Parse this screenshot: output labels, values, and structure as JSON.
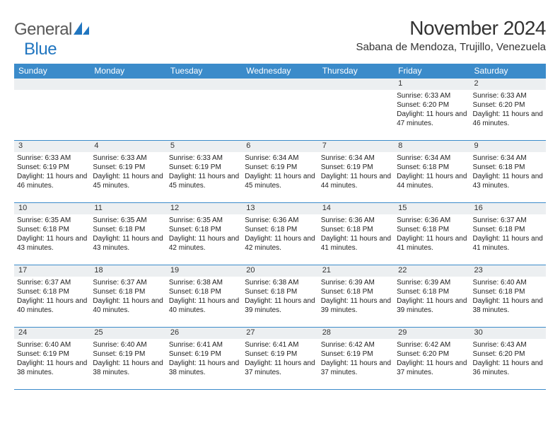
{
  "logo": {
    "text1": "General",
    "text2": "Blue"
  },
  "header": {
    "title": "November 2024",
    "location": "Sabana de Mendoza, Trujillo, Venezuela"
  },
  "colors": {
    "header_bg": "#3b8bca",
    "header_text": "#ffffff",
    "daynum_bg": "#eceff1",
    "border": "#3b8bca",
    "logo_general": "#585858",
    "logo_blue": "#2176c0",
    "text": "#333333"
  },
  "day_names": [
    "Sunday",
    "Monday",
    "Tuesday",
    "Wednesday",
    "Thursday",
    "Friday",
    "Saturday"
  ],
  "leading_blanks": 5,
  "days": [
    {
      "n": 1,
      "sr": "6:33 AM",
      "ss": "6:20 PM",
      "dl": "11 hours and 47 minutes."
    },
    {
      "n": 2,
      "sr": "6:33 AM",
      "ss": "6:20 PM",
      "dl": "11 hours and 46 minutes."
    },
    {
      "n": 3,
      "sr": "6:33 AM",
      "ss": "6:19 PM",
      "dl": "11 hours and 46 minutes."
    },
    {
      "n": 4,
      "sr": "6:33 AM",
      "ss": "6:19 PM",
      "dl": "11 hours and 45 minutes."
    },
    {
      "n": 5,
      "sr": "6:33 AM",
      "ss": "6:19 PM",
      "dl": "11 hours and 45 minutes."
    },
    {
      "n": 6,
      "sr": "6:34 AM",
      "ss": "6:19 PM",
      "dl": "11 hours and 45 minutes."
    },
    {
      "n": 7,
      "sr": "6:34 AM",
      "ss": "6:19 PM",
      "dl": "11 hours and 44 minutes."
    },
    {
      "n": 8,
      "sr": "6:34 AM",
      "ss": "6:18 PM",
      "dl": "11 hours and 44 minutes."
    },
    {
      "n": 9,
      "sr": "6:34 AM",
      "ss": "6:18 PM",
      "dl": "11 hours and 43 minutes."
    },
    {
      "n": 10,
      "sr": "6:35 AM",
      "ss": "6:18 PM",
      "dl": "11 hours and 43 minutes."
    },
    {
      "n": 11,
      "sr": "6:35 AM",
      "ss": "6:18 PM",
      "dl": "11 hours and 43 minutes."
    },
    {
      "n": 12,
      "sr": "6:35 AM",
      "ss": "6:18 PM",
      "dl": "11 hours and 42 minutes."
    },
    {
      "n": 13,
      "sr": "6:36 AM",
      "ss": "6:18 PM",
      "dl": "11 hours and 42 minutes."
    },
    {
      "n": 14,
      "sr": "6:36 AM",
      "ss": "6:18 PM",
      "dl": "11 hours and 41 minutes."
    },
    {
      "n": 15,
      "sr": "6:36 AM",
      "ss": "6:18 PM",
      "dl": "11 hours and 41 minutes."
    },
    {
      "n": 16,
      "sr": "6:37 AM",
      "ss": "6:18 PM",
      "dl": "11 hours and 41 minutes."
    },
    {
      "n": 17,
      "sr": "6:37 AM",
      "ss": "6:18 PM",
      "dl": "11 hours and 40 minutes."
    },
    {
      "n": 18,
      "sr": "6:37 AM",
      "ss": "6:18 PM",
      "dl": "11 hours and 40 minutes."
    },
    {
      "n": 19,
      "sr": "6:38 AM",
      "ss": "6:18 PM",
      "dl": "11 hours and 40 minutes."
    },
    {
      "n": 20,
      "sr": "6:38 AM",
      "ss": "6:18 PM",
      "dl": "11 hours and 39 minutes."
    },
    {
      "n": 21,
      "sr": "6:39 AM",
      "ss": "6:18 PM",
      "dl": "11 hours and 39 minutes."
    },
    {
      "n": 22,
      "sr": "6:39 AM",
      "ss": "6:18 PM",
      "dl": "11 hours and 39 minutes."
    },
    {
      "n": 23,
      "sr": "6:40 AM",
      "ss": "6:18 PM",
      "dl": "11 hours and 38 minutes."
    },
    {
      "n": 24,
      "sr": "6:40 AM",
      "ss": "6:19 PM",
      "dl": "11 hours and 38 minutes."
    },
    {
      "n": 25,
      "sr": "6:40 AM",
      "ss": "6:19 PM",
      "dl": "11 hours and 38 minutes."
    },
    {
      "n": 26,
      "sr": "6:41 AM",
      "ss": "6:19 PM",
      "dl": "11 hours and 38 minutes."
    },
    {
      "n": 27,
      "sr": "6:41 AM",
      "ss": "6:19 PM",
      "dl": "11 hours and 37 minutes."
    },
    {
      "n": 28,
      "sr": "6:42 AM",
      "ss": "6:19 PM",
      "dl": "11 hours and 37 minutes."
    },
    {
      "n": 29,
      "sr": "6:42 AM",
      "ss": "6:20 PM",
      "dl": "11 hours and 37 minutes."
    },
    {
      "n": 30,
      "sr": "6:43 AM",
      "ss": "6:20 PM",
      "dl": "11 hours and 36 minutes."
    }
  ],
  "labels": {
    "sunrise": "Sunrise:",
    "sunset": "Sunset:",
    "daylight": "Daylight:"
  }
}
